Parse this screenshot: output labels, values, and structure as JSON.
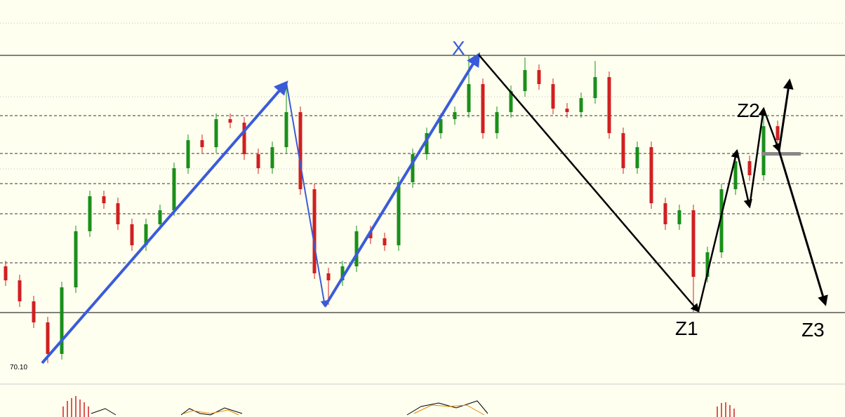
{
  "chart_data": {
    "type": "candlestick",
    "ylim": [
      69.8,
      75.28
    ],
    "up_color": "#1a8f1a",
    "down_color": "#d02020",
    "levels": [
      {
        "value": 74.49,
        "style": "solid"
      },
      {
        "value": 70.82,
        "style": "solid"
      },
      {
        "value": 73.63,
        "style": "dashed"
      },
      {
        "value": 73.09,
        "style": "dashed"
      },
      {
        "value": 72.66,
        "style": "dashed"
      },
      {
        "value": 72.23,
        "style": "dashed"
      },
      {
        "value": 71.53,
        "style": "dashed"
      },
      {
        "value": 74.95,
        "style": "dotted"
      },
      {
        "value": 73.9,
        "style": "dotted"
      },
      {
        "value": 72.87,
        "style": "dotted"
      }
    ],
    "open": [
      71.48,
      71.28,
      70.98,
      70.68,
      70.23,
      71.18,
      71.98,
      72.48,
      72.38,
      72.08,
      71.78,
      72.08,
      72.28,
      72.88,
      73.28,
      73.18,
      73.58,
      73.53,
      73.08,
      72.88,
      73.18,
      73.68,
      72.58,
      71.38,
      71.28,
      71.48,
      71.98,
      71.88,
      71.78,
      72.68,
      73.08,
      73.38,
      73.58,
      73.68,
      74.08,
      73.38,
      73.68,
      73.98,
      74.28,
      74.08,
      73.73,
      73.68,
      73.88,
      74.18,
      73.38,
      72.88,
      73.18,
      72.38,
      72.08,
      72.28,
      71.33,
      71.68,
      72.58,
      72.98,
      72.78,
      73.48
    ],
    "high": [
      71.56,
      71.36,
      71.06,
      70.76,
      71.26,
      72.06,
      72.56,
      72.56,
      72.46,
      72.16,
      72.16,
      72.36,
      72.96,
      73.36,
      73.36,
      73.66,
      73.66,
      73.61,
      73.16,
      73.26,
      74.08,
      73.76,
      72.66,
      71.46,
      71.56,
      72.06,
      72.06,
      71.96,
      72.76,
      73.16,
      73.46,
      73.66,
      73.76,
      74.49,
      74.16,
      73.76,
      74.06,
      74.46,
      74.36,
      74.16,
      73.81,
      73.96,
      74.41,
      74.26,
      73.46,
      73.26,
      73.26,
      72.46,
      72.36,
      72.36,
      71.76,
      72.66,
      73.06,
      73.06,
      73.73,
      73.56
    ],
    "low": [
      71.2,
      70.9,
      70.6,
      70.1,
      70.15,
      71.1,
      71.9,
      72.3,
      72.0,
      71.7,
      71.7,
      72.0,
      72.2,
      72.8,
      73.1,
      73.1,
      73.45,
      73.0,
      72.8,
      72.8,
      73.1,
      72.5,
      71.3,
      70.93,
      71.2,
      71.4,
      71.8,
      71.7,
      71.7,
      72.6,
      73.0,
      73.3,
      73.5,
      73.6,
      73.3,
      73.3,
      73.6,
      73.9,
      74.0,
      73.65,
      73.6,
      73.6,
      73.8,
      73.3,
      72.8,
      72.8,
      72.3,
      72.0,
      72.0,
      70.83,
      71.25,
      71.6,
      72.5,
      72.7,
      72.7,
      73.2
    ],
    "close": [
      71.28,
      70.98,
      70.68,
      70.23,
      71.18,
      71.98,
      72.48,
      72.38,
      72.08,
      71.78,
      72.08,
      72.28,
      72.88,
      73.28,
      73.18,
      73.58,
      73.53,
      73.08,
      72.88,
      73.18,
      73.68,
      72.58,
      71.38,
      71.28,
      71.48,
      71.98,
      71.88,
      71.78,
      72.68,
      73.08,
      73.38,
      73.58,
      73.68,
      74.08,
      73.38,
      73.68,
      73.98,
      74.28,
      74.08,
      73.73,
      73.68,
      73.88,
      74.18,
      73.38,
      72.88,
      73.18,
      72.38,
      72.08,
      72.28,
      71.33,
      71.68,
      72.58,
      72.98,
      72.78,
      73.48,
      73.28
    ],
    "low_label": {
      "value": 70.1,
      "label": "70.10"
    },
    "annotations": [
      "X",
      "Z1",
      "Z2",
      "Z3"
    ]
  }
}
